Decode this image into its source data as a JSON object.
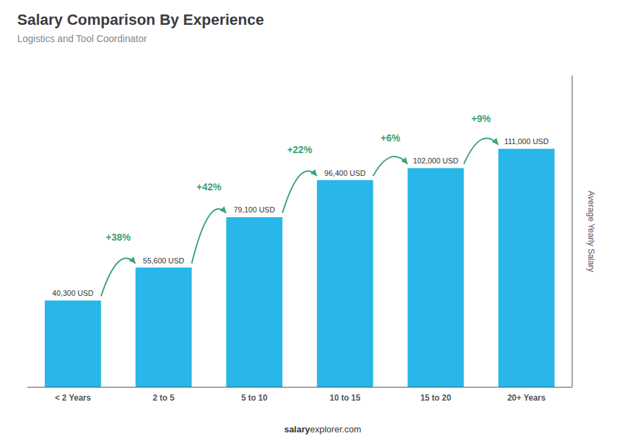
{
  "chart_data": {
    "type": "bar",
    "title": "Salary Comparison By Experience",
    "subtitle": "Logistics and Tool Coordinator",
    "ylabel": "Average Yearly Salary",
    "categories": [
      "< 2 Years",
      "2 to 5",
      "5 to 10",
      "10 to 15",
      "15 to 20",
      "20+ Years"
    ],
    "values": [
      40300,
      55600,
      79100,
      96400,
      102000,
      111000
    ],
    "value_labels": [
      "40,300 USD",
      "55,600 USD",
      "79,100 USD",
      "96,400 USD",
      "102,000 USD",
      "111,000 USD"
    ],
    "data_labels": true,
    "annotations": [
      "+38%",
      "+42%",
      "+22%",
      "+6%",
      "+9%"
    ],
    "footer": [
      "salary",
      "explorer.com"
    ],
    "color": "#29b6e8",
    "ylim": [
      0,
      145000
    ],
    "tick_labels": "x",
    "grid": false
  }
}
